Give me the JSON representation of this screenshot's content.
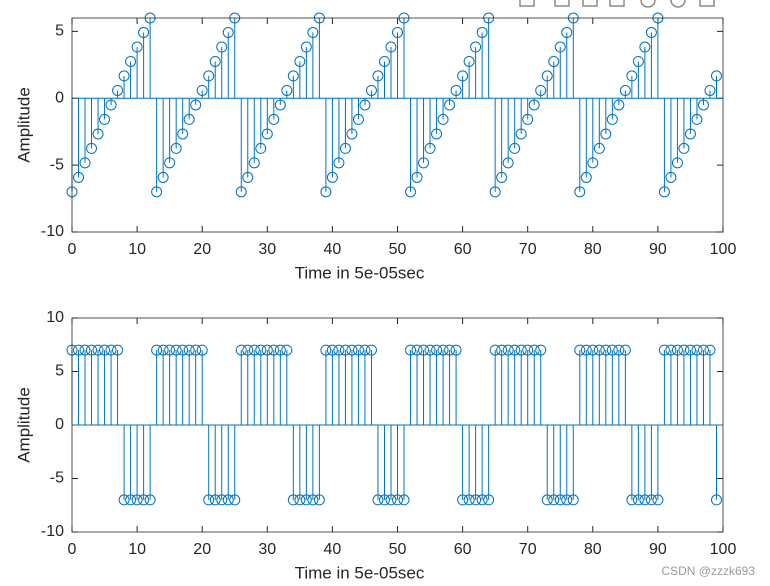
{
  "chart_data": [
    {
      "type": "stem",
      "color": "#0072bd",
      "xlabel": "Time in 5e-05sec",
      "ylabel": "Amplitude",
      "xlim": [
        0,
        100
      ],
      "xticks": [
        0,
        10,
        20,
        30,
        40,
        50,
        60,
        70,
        80,
        90,
        100
      ],
      "ylim": [
        -10,
        6
      ],
      "yticks": [
        -10,
        -5,
        0,
        5
      ],
      "x": [
        0,
        1,
        2,
        3,
        4,
        5,
        6,
        7,
        8,
        9,
        10,
        11,
        12,
        13,
        14,
        15,
        16,
        17,
        18,
        19,
        20,
        21,
        22,
        23,
        24,
        25,
        26,
        27,
        28,
        29,
        30,
        31,
        32,
        33,
        34,
        35,
        36,
        37,
        38,
        39,
        40,
        41,
        42,
        43,
        44,
        45,
        46,
        47,
        48,
        49,
        50,
        51,
        52,
        53,
        54,
        55,
        56,
        57,
        58,
        59,
        60,
        61,
        62,
        63,
        64,
        65,
        66,
        67,
        68,
        69,
        70,
        71,
        72,
        73,
        74,
        75,
        76,
        77,
        78,
        79,
        80,
        81,
        82,
        83,
        84,
        85,
        86,
        87,
        88,
        89,
        90,
        91,
        92,
        93,
        94,
        95,
        96,
        97,
        98,
        99
      ],
      "values": [
        -7,
        -5.92,
        -4.83,
        -3.75,
        -2.67,
        -1.58,
        -0.5,
        0.58,
        1.67,
        2.75,
        3.83,
        4.92,
        6,
        -7,
        -5.92,
        -4.83,
        -3.75,
        -2.67,
        -1.58,
        -0.5,
        0.58,
        1.67,
        2.75,
        3.83,
        4.92,
        6,
        -7,
        -5.92,
        -4.83,
        -3.75,
        -2.67,
        -1.58,
        -0.5,
        0.58,
        1.67,
        2.75,
        3.83,
        4.92,
        6,
        -7,
        -5.92,
        -4.83,
        -3.75,
        -2.67,
        -1.58,
        -0.5,
        0.58,
        1.67,
        2.75,
        3.83,
        4.92,
        6,
        -7,
        -5.92,
        -4.83,
        -3.75,
        -2.67,
        -1.58,
        -0.5,
        0.58,
        1.67,
        2.75,
        3.83,
        4.92,
        6,
        -7,
        -5.92,
        -4.83,
        -3.75,
        -2.67,
        -1.58,
        -0.5,
        0.58,
        1.67,
        2.75,
        3.83,
        4.92,
        6,
        -7,
        -5.92,
        -4.83,
        -3.75,
        -2.67,
        -1.58,
        -0.5,
        0.58,
        1.67,
        2.75,
        3.83,
        4.92,
        6,
        -7,
        -5.92,
        -4.83,
        -3.75,
        -2.67,
        -1.58,
        -0.5,
        0.58,
        1.67
      ]
    },
    {
      "type": "stem",
      "color": "#0072bd",
      "xlabel": "Time in 5e-05sec",
      "ylabel": "Amplitude",
      "xlim": [
        0,
        100
      ],
      "xticks": [
        0,
        10,
        20,
        30,
        40,
        50,
        60,
        70,
        80,
        90,
        100
      ],
      "ylim": [
        -10,
        10
      ],
      "yticks": [
        -10,
        -5,
        0,
        5,
        10
      ],
      "x": [
        0,
        1,
        2,
        3,
        4,
        5,
        6,
        7,
        8,
        9,
        10,
        11,
        12,
        13,
        14,
        15,
        16,
        17,
        18,
        19,
        20,
        21,
        22,
        23,
        24,
        25,
        26,
        27,
        28,
        29,
        30,
        31,
        32,
        33,
        34,
        35,
        36,
        37,
        38,
        39,
        40,
        41,
        42,
        43,
        44,
        45,
        46,
        47,
        48,
        49,
        50,
        51,
        52,
        53,
        54,
        55,
        56,
        57,
        58,
        59,
        60,
        61,
        62,
        63,
        64,
        65,
        66,
        67,
        68,
        69,
        70,
        71,
        72,
        73,
        74,
        75,
        76,
        77,
        78,
        79,
        80,
        81,
        82,
        83,
        84,
        85,
        86,
        87,
        88,
        89,
        90,
        91,
        92,
        93,
        94,
        95,
        96,
        97,
        98,
        99
      ],
      "values": [
        7,
        7,
        7,
        7,
        7,
        7,
        7,
        7,
        -7,
        -7,
        -7,
        -7,
        -7,
        7,
        7,
        7,
        7,
        7,
        7,
        7,
        7,
        -7,
        -7,
        -7,
        -7,
        -7,
        7,
        7,
        7,
        7,
        7,
        7,
        7,
        7,
        -7,
        -7,
        -7,
        -7,
        -7,
        7,
        7,
        7,
        7,
        7,
        7,
        7,
        7,
        -7,
        -7,
        -7,
        -7,
        -7,
        7,
        7,
        7,
        7,
        7,
        7,
        7,
        7,
        -7,
        -7,
        -7,
        -7,
        -7,
        7,
        7,
        7,
        7,
        7,
        7,
        7,
        7,
        -7,
        -7,
        -7,
        -7,
        -7,
        7,
        7,
        7,
        7,
        7,
        7,
        7,
        7,
        -7,
        -7,
        -7,
        -7,
        -7,
        7,
        7,
        7,
        7,
        7,
        7,
        7,
        7,
        -7
      ]
    }
  ],
  "watermark": "CSDN @zzzk693"
}
